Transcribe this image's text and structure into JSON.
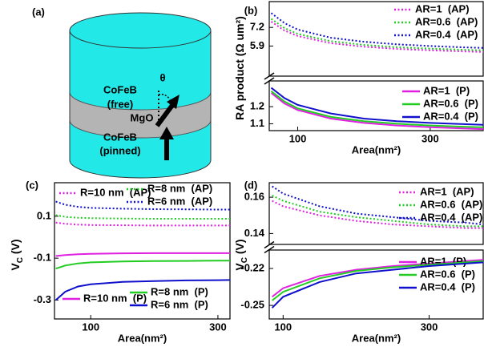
{
  "panel_a": {
    "label": "(a)",
    "free_layer": [
      "CoFeB",
      "(free)"
    ],
    "angle": "θ",
    "barrier": "MgO",
    "pinned_layer": [
      "CoFeB",
      "(pinned)"
    ]
  },
  "chart_data": [
    {
      "type": "line",
      "panel_label": "(b)",
      "xlabel": "Area(nm²)",
      "ylabel": [
        "RA product (Ω um²)"
      ],
      "x": [
        60,
        80,
        100,
        150,
        200,
        250,
        300,
        350,
        380
      ],
      "xlim": [
        57,
        380
      ],
      "xticks": [
        100,
        300
      ],
      "ylim": [
        [
          1.06,
          1.35
        ],
        [
          3.8,
          9.0
        ]
      ],
      "yticks": [
        7.2,
        5.9,
        1.2,
        1.1
      ],
      "series": [
        {
          "name": "AR=1  (AP)",
          "color": "#e020e0",
          "style": "dotted",
          "values": [
            7.6,
            6.98,
            6.6,
            6.1,
            5.85,
            5.7,
            5.6,
            5.53,
            5.49
          ]
        },
        {
          "name": "AR=0.6  (AP)",
          "color": "#22cc22",
          "style": "dotted",
          "values": [
            7.8,
            7.15,
            6.75,
            6.24,
            5.98,
            5.82,
            5.72,
            5.64,
            5.6
          ]
        },
        {
          "name": "AR=0.4  (AP)",
          "color": "#1010cc",
          "style": "dotted",
          "values": [
            8.2,
            7.5,
            7.05,
            6.48,
            6.2,
            6.02,
            5.9,
            5.81,
            5.77
          ]
        },
        {
          "name": "AR=1  (P)",
          "color": "#e020e0",
          "style": "solid",
          "values": [
            1.28,
            1.218,
            1.18,
            1.13,
            1.105,
            1.09,
            1.08,
            1.073,
            1.069
          ]
        },
        {
          "name": "AR=0.6  (P)",
          "color": "#22cc22",
          "style": "solid",
          "values": [
            1.29,
            1.23,
            1.19,
            1.14,
            1.115,
            1.1,
            1.09,
            1.083,
            1.079
          ]
        },
        {
          "name": "AR=0.4  (P)",
          "color": "#1010cc",
          "style": "solid",
          "values": [
            1.31,
            1.25,
            1.21,
            1.16,
            1.13,
            1.115,
            1.105,
            1.098,
            1.094
          ]
        }
      ]
    },
    {
      "type": "line",
      "panel_label": "(c)",
      "xlabel": "Area(nm²)",
      "ylabel": [
        "V",
        "C",
        " (V)"
      ],
      "x": [
        45,
        60,
        80,
        100,
        150,
        200,
        250,
        300,
        319
      ],
      "xlim": [
        43,
        319
      ],
      "xticks": [
        100,
        300
      ],
      "ylim": [
        -0.39,
        0.26
      ],
      "yticks": [
        0.1,
        -0.1,
        -0.3
      ],
      "series": [
        {
          "name": "R=10 nm  (AP)",
          "color": "#e020e0",
          "style": "dotted",
          "values": [
            0.07,
            0.064,
            0.06,
            0.058,
            0.057,
            0.056,
            0.056,
            0.056,
            0.056
          ]
        },
        {
          "name": "R=8 nm  (AP)",
          "color": "#22cc22",
          "style": "dotted",
          "values": [
            0.105,
            0.097,
            0.093,
            0.091,
            0.089,
            0.088,
            0.088,
            0.088,
            0.088
          ]
        },
        {
          "name": "R=6 nm  (AP)",
          "color": "#1010cc",
          "style": "dotted",
          "values": [
            0.17,
            0.155,
            0.145,
            0.14,
            0.136,
            0.134,
            0.133,
            0.132,
            0.132
          ]
        },
        {
          "name": "R=10 nm  (P)",
          "color": "#e020e0",
          "style": "solid",
          "values": [
            -0.09,
            -0.085,
            -0.081,
            -0.079,
            -0.077,
            -0.076,
            -0.076,
            -0.076,
            -0.076
          ]
        },
        {
          "name": "R=8 nm  (P)",
          "color": "#22cc22",
          "style": "solid",
          "values": [
            -0.15,
            -0.135,
            -0.125,
            -0.12,
            -0.116,
            -0.114,
            -0.113,
            -0.112,
            -0.112
          ]
        },
        {
          "name": "R=6 nm  (P)",
          "color": "#1010cc",
          "style": "solid",
          "values": [
            -0.3,
            -0.26,
            -0.235,
            -0.225,
            -0.213,
            -0.209,
            -0.206,
            -0.205,
            -0.204
          ]
        }
      ]
    },
    {
      "type": "line",
      "panel_label": "(d)",
      "xlabel": "Area(nm²)",
      "ylabel": [
        "V",
        "C",
        " (V)"
      ],
      "x": [
        85,
        100,
        150,
        200,
        250,
        300,
        350,
        374
      ],
      "xlim": [
        81,
        374
      ],
      "xticks": [
        100,
        300
      ],
      "ylim": [
        [
          -0.261,
          -0.205
        ],
        [
          0.134,
          0.168
        ]
      ],
      "yticks": [
        0.16,
        0.14,
        -0.22,
        -0.25
      ],
      "series": [
        {
          "name": "AR=1  (AP)",
          "color": "#e020e0",
          "style": "dotted",
          "values": [
            0.158,
            0.155,
            0.15,
            0.147,
            0.145,
            0.144,
            0.143,
            0.143
          ]
        },
        {
          "name": "AR=0.6  (AP)",
          "color": "#22cc22",
          "style": "dotted",
          "values": [
            0.161,
            0.158,
            0.152,
            0.149,
            0.147,
            0.145,
            0.144,
            0.144
          ]
        },
        {
          "name": "AR=0.4  (AP)",
          "color": "#1010cc",
          "style": "dotted",
          "values": [
            0.166,
            0.162,
            0.155,
            0.151,
            0.149,
            0.147,
            0.146,
            0.145
          ]
        },
        {
          "name": "AR=1  (P)",
          "color": "#e020e0",
          "style": "solid",
          "values": [
            -0.243,
            -0.236,
            -0.226,
            -0.221,
            -0.218,
            -0.216,
            -0.214,
            -0.213
          ]
        },
        {
          "name": "AR=0.6  (P)",
          "color": "#22cc22",
          "style": "solid",
          "values": [
            -0.246,
            -0.239,
            -0.228,
            -0.222,
            -0.219,
            -0.217,
            -0.215,
            -0.214
          ]
        },
        {
          "name": "AR=0.4  (P)",
          "color": "#1010cc",
          "style": "solid",
          "values": [
            -0.252,
            -0.243,
            -0.231,
            -0.224,
            -0.221,
            -0.218,
            -0.216,
            -0.215
          ]
        }
      ]
    }
  ]
}
